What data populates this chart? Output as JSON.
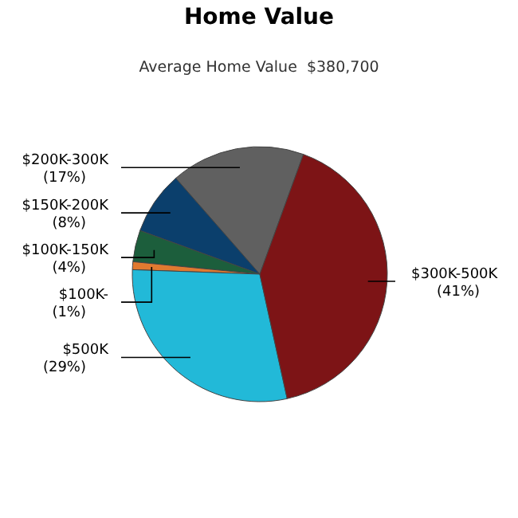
{
  "chart_data": {
    "type": "pie",
    "title": "Home Value",
    "subtitle": "Average Home Value  $380,700",
    "categories": [
      "$200K-300K",
      "$150K-200K",
      "$100K-150K",
      "$100K-",
      "$500K",
      "$300K-500K"
    ],
    "values": [
      17,
      8,
      4,
      1,
      29,
      41
    ],
    "colors": [
      "#606060",
      "#0b3f6c",
      "#1c5e3c",
      "#e07a30",
      "#22b9d8",
      "#7d1416"
    ],
    "value_labels": [
      "(17%)",
      "(8%)",
      "(4%)",
      "(1%)",
      "(29%)",
      "(41%)"
    ]
  }
}
